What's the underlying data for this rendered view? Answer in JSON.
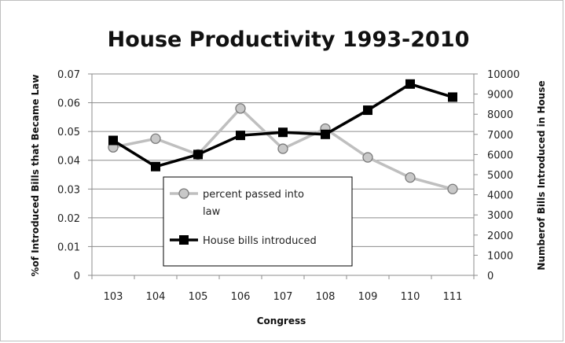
{
  "chart_data": {
    "type": "line",
    "title": "House Productivity 1993-2010",
    "xlabel": "Congress",
    "ylabel_left": "%of Introduced Bills that Became Law",
    "ylabel_right": "Numberof Bills Introduced in House",
    "categories": [
      "103",
      "104",
      "105",
      "106",
      "107",
      "108",
      "109",
      "110",
      "111"
    ],
    "y_left": {
      "min": 0,
      "max": 0.07,
      "ticks": [
        "0",
        "0.01",
        "0.02",
        "0.03",
        "0.04",
        "0.05",
        "0.06",
        "0.07"
      ]
    },
    "y_right": {
      "min": 0,
      "max": 10000,
      "ticks": [
        "0",
        "1000",
        "2000",
        "3000",
        "4000",
        "5000",
        "6000",
        "7000",
        "8000",
        "9000",
        "10000"
      ]
    },
    "grid": "horizontal",
    "legend_position": "inside-bottom-left",
    "series": [
      {
        "name": "percent passed into law",
        "legend_lines": [
          "percent passed into",
          "law"
        ],
        "axis": "left",
        "color": "#bfbfbf",
        "marker": "circle",
        "values": [
          0.0445,
          0.0475,
          0.042,
          0.058,
          0.044,
          0.051,
          0.041,
          0.034,
          0.03
        ]
      },
      {
        "name": "House bills introduced",
        "legend_lines": [
          "House bills introduced"
        ],
        "axis": "right",
        "color": "#000000",
        "marker": "square",
        "values": [
          6700,
          5400,
          6000,
          6950,
          7100,
          7000,
          8200,
          9500,
          8850
        ]
      }
    ]
  }
}
